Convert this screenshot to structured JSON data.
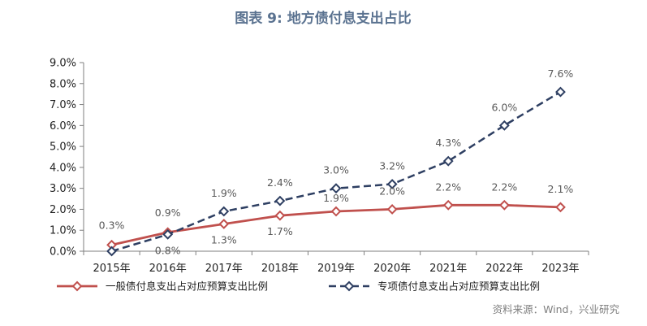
{
  "title": "图表 9:  地方债付息支出占比",
  "source": "资料来源：Wind，兴业研究",
  "chart_data": {
    "type": "line",
    "categories": [
      "2015年",
      "2016年",
      "2017年",
      "2018年",
      "2019年",
      "2020年",
      "2021年",
      "2022年",
      "2023年"
    ],
    "ylim": [
      0,
      9
    ],
    "yticks": [
      0,
      1,
      2,
      3,
      4,
      5,
      6,
      7,
      8,
      9
    ],
    "yticklabels": [
      "0.0%",
      "1.0%",
      "2.0%",
      "3.0%",
      "4.0%",
      "5.0%",
      "6.0%",
      "7.0%",
      "8.0%",
      "9.0%"
    ],
    "grid": false,
    "legend_position": "bottom",
    "series": [
      {
        "name": "一般债付息支出占对应预算支出比例",
        "values": [
          0.3,
          0.9,
          1.3,
          1.7,
          1.9,
          2.0,
          2.2,
          2.2,
          2.1
        ],
        "labels": [
          "0.3%",
          "0.9%",
          "1.3%",
          "1.7%",
          "1.9%",
          "2.0%",
          "2.2%",
          "2.2%",
          "2.1%"
        ],
        "color": "#c0504d",
        "style": "solid",
        "marker": "diamond-hollow"
      },
      {
        "name": "专项债付息支出占对应预算支出比例",
        "values": [
          0.0,
          0.8,
          1.9,
          2.4,
          3.0,
          3.2,
          4.3,
          6.0,
          7.6
        ],
        "labels": [
          "",
          "0.8%",
          "1.9%",
          "2.4%",
          "3.0%",
          "3.2%",
          "4.3%",
          "6.0%",
          "7.6%"
        ],
        "color": "#2e3f62",
        "style": "dashed",
        "marker": "diamond-hollow"
      }
    ]
  }
}
